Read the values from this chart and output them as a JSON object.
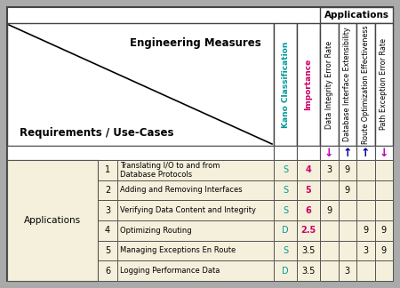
{
  "bg_color": "#f5f0dc",
  "requirements_label": "Requirements / Use-Cases",
  "engineering_label": "Engineering Measures",
  "kano_label": "Kano Classification",
  "importance_label": "Importance",
  "applications_top_label": "Applications",
  "applications_row_label": "Applications",
  "col_headers": [
    "Data Integrity Error Rate",
    "Database Interface Extensibility",
    "Route Optimization Effectiveness",
    "Path Exception Error Rate"
  ],
  "col_directions": [
    "↓",
    "↑",
    "↑",
    "↓"
  ],
  "col_dir_colors": [
    "#bb00bb",
    "#000099",
    "#000099",
    "#bb00bb"
  ],
  "rows": [
    {
      "num": 1,
      "label": "Translating I/O to and from\nDatabase Protocols",
      "kano": "S",
      "importance": "4",
      "imp_pink": true,
      "values": [
        3,
        9,
        null,
        null
      ]
    },
    {
      "num": 2,
      "label": "Adding and Removing Interfaces",
      "kano": "S",
      "importance": "5",
      "imp_pink": true,
      "values": [
        null,
        9,
        null,
        null
      ]
    },
    {
      "num": 3,
      "label": "Verifying Data Content and Integrity",
      "kano": "S",
      "importance": "6",
      "imp_pink": true,
      "values": [
        9,
        null,
        null,
        null
      ]
    },
    {
      "num": 4,
      "label": "Optimizing Routing",
      "kano": "D",
      "importance": "2.5",
      "imp_pink": true,
      "values": [
        null,
        null,
        9,
        9
      ]
    },
    {
      "num": 5,
      "label": "Managing Exceptions En Route",
      "kano": "S",
      "importance": "3.5",
      "imp_pink": false,
      "values": [
        null,
        null,
        3,
        9
      ]
    },
    {
      "num": 6,
      "label": "Logging Performance Data",
      "kano": "D",
      "importance": "3.5",
      "imp_pink": false,
      "values": [
        null,
        3,
        null,
        null
      ]
    }
  ],
  "kano_color": "#009999",
  "importance_color": "#cc0066",
  "outer_border": "#444444",
  "inner_border": "#777777"
}
